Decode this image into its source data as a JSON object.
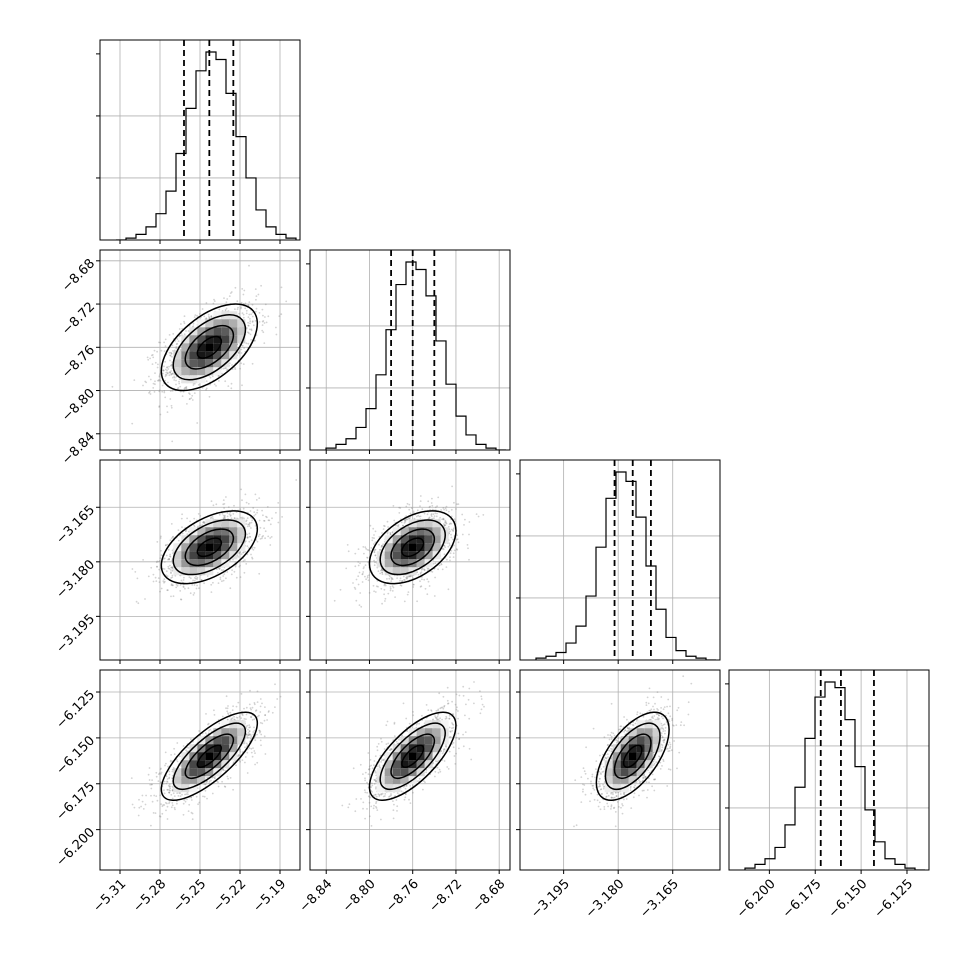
{
  "chart_data": {
    "type": "corner",
    "title": "",
    "grid": true,
    "parameters": [
      {
        "name": "",
        "range": [
          -5.325,
          -5.175
        ],
        "ticks": [
          "-5.31",
          "-5.28",
          "-5.25",
          "-5.22",
          "-5.19"
        ],
        "quantiles": [
          -5.262,
          -5.243,
          -5.225
        ],
        "median": -5.243,
        "sigma": 0.018
      },
      {
        "name": "",
        "range": [
          -8.855,
          -8.67
        ],
        "ticks": [
          "-8.84",
          "-8.80",
          "-8.76",
          "-8.72",
          "-8.68"
        ],
        "quantiles": [
          -8.78,
          -8.76,
          -8.74
        ],
        "median": -8.76,
        "sigma": 0.02
      },
      {
        "name": "",
        "range": [
          -3.207,
          -3.152
        ],
        "ticks": [
          "-3.195",
          "-3.180",
          "-3.165"
        ],
        "quantiles": [
          -3.181,
          -3.176,
          -3.171
        ],
        "median": -3.176,
        "sigma": 0.005
      },
      {
        "name": "",
        "range": [
          -6.222,
          -6.113
        ],
        "ticks": [
          "-6.200",
          "-6.175",
          "-6.150",
          "-6.125"
        ],
        "quantiles": [
          -6.172,
          -6.161,
          -6.143
        ],
        "median": -6.16,
        "sigma": 0.012
      }
    ],
    "correlations": [
      {
        "x": 0,
        "y": 1,
        "rho": 0.55
      },
      {
        "x": 0,
        "y": 2,
        "rho": 0.5
      },
      {
        "x": 1,
        "y": 2,
        "rho": 0.45
      },
      {
        "x": 0,
        "y": 3,
        "rho": 0.75
      },
      {
        "x": 1,
        "y": 3,
        "rho": 0.7
      },
      {
        "x": 2,
        "y": 3,
        "rho": 0.6
      }
    ],
    "histograms": [
      [
        0,
        1,
        3,
        7,
        14,
        26,
        46,
        70,
        90,
        100,
        96,
        78,
        55,
        33,
        16,
        7,
        3,
        1
      ],
      [
        1,
        3,
        6,
        12,
        22,
        40,
        64,
        88,
        100,
        96,
        82,
        58,
        35,
        18,
        8,
        3,
        1,
        0
      ],
      [
        1,
        2,
        4,
        9,
        18,
        34,
        60,
        86,
        100,
        95,
        76,
        50,
        27,
        12,
        5,
        2,
        1,
        0
      ],
      [
        1,
        3,
        6,
        12,
        24,
        44,
        70,
        92,
        100,
        97,
        80,
        55,
        32,
        15,
        6,
        3,
        1,
        0
      ]
    ],
    "contour_levels_sigma": [
      0.5,
      1.0,
      1.5,
      2.0
    ],
    "colors": {
      "axes": "#000000",
      "grid": "#b0b0b0",
      "points": "#808080",
      "contour": "#000000",
      "quantile_line": "#000000"
    }
  }
}
